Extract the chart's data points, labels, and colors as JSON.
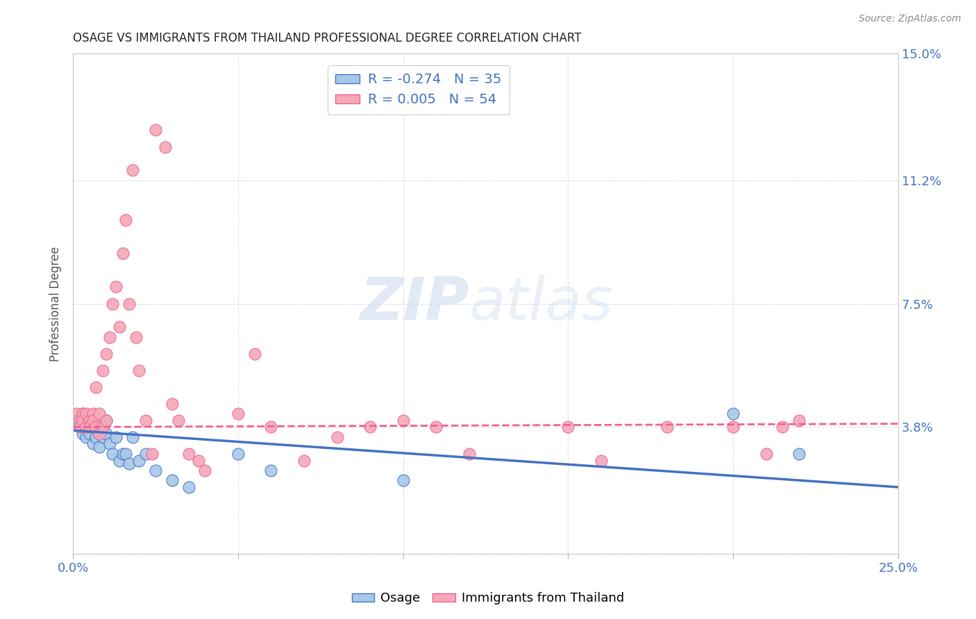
{
  "title": "OSAGE VS IMMIGRANTS FROM THAILAND PROFESSIONAL DEGREE CORRELATION CHART",
  "source": "Source: ZipAtlas.com",
  "ylabel": "Professional Degree",
  "watermark_part1": "ZIP",
  "watermark_part2": "atlas",
  "xlim": [
    0.0,
    0.25
  ],
  "ylim": [
    0.0,
    0.15
  ],
  "xticks": [
    0.0,
    0.05,
    0.1,
    0.15,
    0.2,
    0.25
  ],
  "xticklabels": [
    "0.0%",
    "",
    "",
    "",
    "",
    "25.0%"
  ],
  "yticks": [
    0.0,
    0.038,
    0.075,
    0.112,
    0.15
  ],
  "yticklabels_right": [
    "",
    "3.8%",
    "7.5%",
    "11.2%",
    "15.0%"
  ],
  "osage_color": "#a8c8e8",
  "thailand_color": "#f4a8b8",
  "osage_line_color": "#4472c4",
  "thailand_line_color": "#f06090",
  "grid_color": "#d8dfe8",
  "background_color": "#ffffff",
  "text_color": "#4472c4",
  "osage_scatter_x": [
    0.001,
    0.002,
    0.003,
    0.003,
    0.004,
    0.004,
    0.005,
    0.005,
    0.006,
    0.006,
    0.007,
    0.007,
    0.008,
    0.008,
    0.009,
    0.01,
    0.01,
    0.011,
    0.012,
    0.013,
    0.014,
    0.015,
    0.016,
    0.017,
    0.018,
    0.02,
    0.022,
    0.025,
    0.03,
    0.035,
    0.05,
    0.06,
    0.1,
    0.2,
    0.22
  ],
  "osage_scatter_y": [
    0.04,
    0.038,
    0.042,
    0.036,
    0.038,
    0.035,
    0.04,
    0.036,
    0.038,
    0.033,
    0.038,
    0.035,
    0.036,
    0.032,
    0.035,
    0.04,
    0.036,
    0.033,
    0.03,
    0.035,
    0.028,
    0.03,
    0.03,
    0.027,
    0.035,
    0.028,
    0.03,
    0.025,
    0.022,
    0.02,
    0.03,
    0.025,
    0.022,
    0.042,
    0.03
  ],
  "thailand_scatter_x": [
    0.001,
    0.002,
    0.002,
    0.003,
    0.003,
    0.004,
    0.004,
    0.005,
    0.005,
    0.006,
    0.006,
    0.007,
    0.007,
    0.008,
    0.008,
    0.009,
    0.009,
    0.01,
    0.01,
    0.011,
    0.012,
    0.013,
    0.014,
    0.015,
    0.016,
    0.017,
    0.018,
    0.019,
    0.02,
    0.022,
    0.024,
    0.025,
    0.028,
    0.03,
    0.032,
    0.035,
    0.038,
    0.04,
    0.05,
    0.055,
    0.06,
    0.07,
    0.08,
    0.09,
    0.1,
    0.11,
    0.12,
    0.15,
    0.16,
    0.18,
    0.2,
    0.21,
    0.215,
    0.22
  ],
  "thailand_scatter_y": [
    0.042,
    0.04,
    0.038,
    0.042,
    0.04,
    0.042,
    0.038,
    0.04,
    0.038,
    0.042,
    0.04,
    0.038,
    0.05,
    0.042,
    0.036,
    0.055,
    0.038,
    0.06,
    0.04,
    0.065,
    0.075,
    0.08,
    0.068,
    0.09,
    0.1,
    0.075,
    0.115,
    0.065,
    0.055,
    0.04,
    0.03,
    0.127,
    0.122,
    0.045,
    0.04,
    0.03,
    0.028,
    0.025,
    0.042,
    0.06,
    0.038,
    0.028,
    0.035,
    0.038,
    0.04,
    0.038,
    0.03,
    0.038,
    0.028,
    0.038,
    0.038,
    0.03,
    0.038,
    0.04
  ],
  "osage_line_x": [
    0.0,
    0.25
  ],
  "osage_line_y": [
    0.037,
    0.02
  ],
  "thailand_line_x": [
    0.0,
    0.25
  ],
  "thailand_line_y": [
    0.038,
    0.039
  ]
}
